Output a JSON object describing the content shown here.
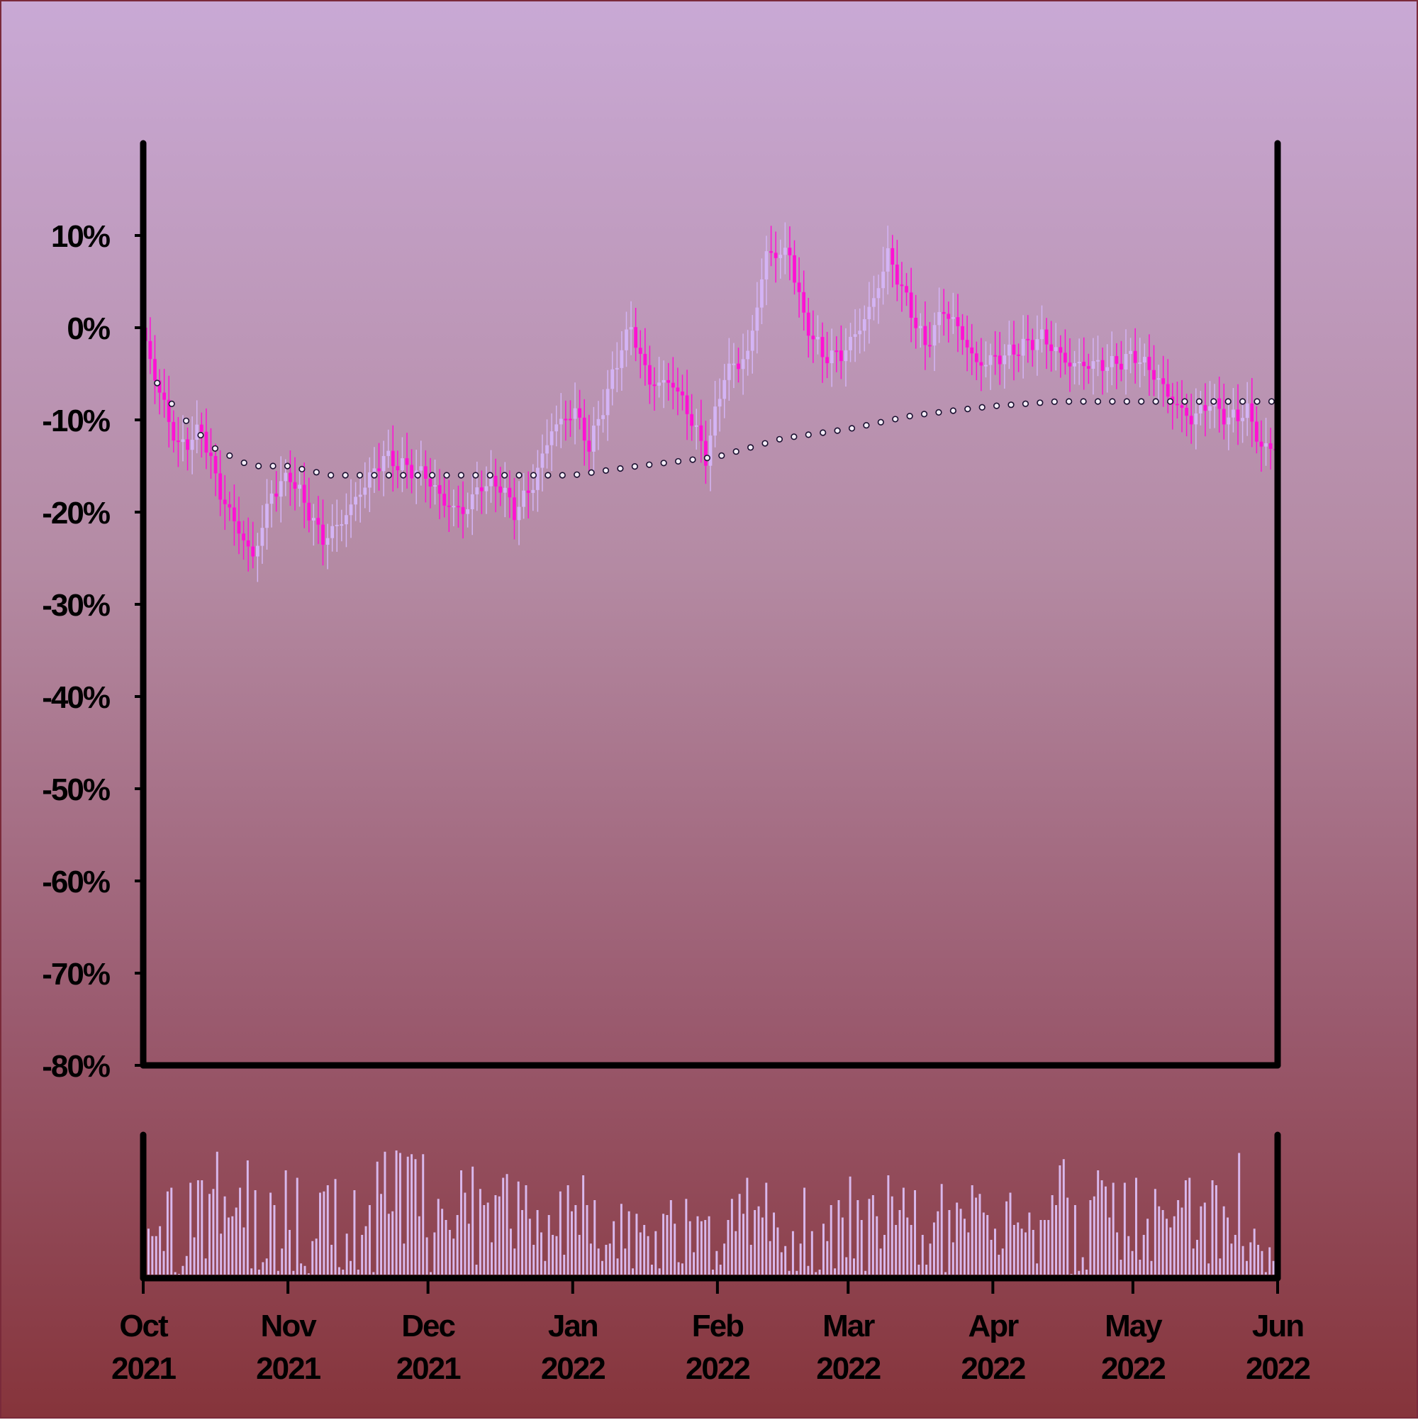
{
  "chart_data": {
    "type": "candlestick",
    "y_axis": {
      "ticks": [
        10,
        0,
        -10,
        -20,
        -30,
        -40,
        -50,
        -60,
        -70,
        -80
      ],
      "tick_labels": [
        "10%",
        "0%",
        "-10%",
        "-20%",
        "-30%",
        "-40%",
        "-50%",
        "-60%",
        "-70%",
        "-80%"
      ],
      "ylim": [
        -80,
        20
      ],
      "unit": "%"
    },
    "x_axis": {
      "range": [
        "2021-10-01",
        "2022-06-01"
      ],
      "ticks": [
        {
          "month": "Oct",
          "year": "2021",
          "date": "2021-10-01"
        },
        {
          "month": "Nov",
          "year": "2021",
          "date": "2021-11-01"
        },
        {
          "month": "Dec",
          "year": "2021",
          "date": "2021-12-01"
        },
        {
          "month": "Jan",
          "year": "2022",
          "date": "2022-01-01"
        },
        {
          "month": "Feb",
          "year": "2022",
          "date": "2022-02-01"
        },
        {
          "month": "Mar",
          "year": "2022",
          "date": "2022-03-01"
        },
        {
          "month": "Apr",
          "year": "2022",
          "date": "2022-04-01"
        },
        {
          "month": "May",
          "year": "2022",
          "date": "2022-05-01"
        },
        {
          "month": "Jun",
          "year": "2022",
          "date": "2022-06-01"
        }
      ]
    },
    "price_path": {
      "description": "cumulative return (%) at anchor dates; candles interpolate between",
      "points": [
        [
          "2021-10-01",
          0
        ],
        [
          "2021-10-05",
          -7
        ],
        [
          "2021-10-09",
          -13
        ],
        [
          "2021-10-12",
          -12
        ],
        [
          "2021-10-14",
          -11
        ],
        [
          "2021-10-18",
          -18
        ],
        [
          "2021-10-22",
          -22
        ],
        [
          "2021-10-25",
          -25
        ],
        [
          "2021-10-29",
          -18
        ],
        [
          "2021-11-02",
          -16
        ],
        [
          "2021-11-05",
          -19
        ],
        [
          "2021-11-09",
          -23
        ],
        [
          "2021-11-13",
          -21
        ],
        [
          "2021-11-18",
          -17
        ],
        [
          "2021-11-22",
          -14
        ],
        [
          "2021-11-26",
          -15
        ],
        [
          "2021-12-01",
          -16
        ],
        [
          "2021-12-05",
          -19
        ],
        [
          "2021-12-09",
          -20
        ],
        [
          "2021-12-13",
          -17
        ],
        [
          "2021-12-17",
          -17
        ],
        [
          "2021-12-20",
          -20
        ],
        [
          "2021-12-24",
          -17
        ],
        [
          "2021-12-28",
          -11
        ],
        [
          "2022-01-02",
          -9
        ],
        [
          "2022-01-05",
          -13
        ],
        [
          "2022-01-09",
          -7
        ],
        [
          "2022-01-12",
          -2
        ],
        [
          "2022-01-14",
          0
        ],
        [
          "2022-01-18",
          -6
        ],
        [
          "2022-01-23",
          -6
        ],
        [
          "2022-01-27",
          -10
        ],
        [
          "2022-01-30",
          -14
        ],
        [
          "2022-02-03",
          -5
        ],
        [
          "2022-02-08",
          -3
        ],
        [
          "2022-02-12",
          8
        ],
        [
          "2022-02-17",
          8
        ],
        [
          "2022-02-20",
          1
        ],
        [
          "2022-02-24",
          -3
        ],
        [
          "2022-02-28",
          -3
        ],
        [
          "2022-03-04",
          0
        ],
        [
          "2022-03-07",
          3
        ],
        [
          "2022-03-10",
          8
        ],
        [
          "2022-03-14",
          3
        ],
        [
          "2022-03-18",
          -2
        ],
        [
          "2022-03-22",
          2
        ],
        [
          "2022-03-25",
          0
        ],
        [
          "2022-03-29",
          -4
        ],
        [
          "2022-04-04",
          -3
        ],
        [
          "2022-04-08",
          -2
        ],
        [
          "2022-04-12",
          -1
        ],
        [
          "2022-04-18",
          -4
        ],
        [
          "2022-04-22",
          -4
        ],
        [
          "2022-04-27",
          -4
        ],
        [
          "2022-05-02",
          -3
        ],
        [
          "2022-05-06",
          -5
        ],
        [
          "2022-05-10",
          -8
        ],
        [
          "2022-05-14",
          -10
        ],
        [
          "2022-05-18",
          -8
        ],
        [
          "2022-05-22",
          -10
        ],
        [
          "2022-05-26",
          -9
        ],
        [
          "2022-05-29",
          -13
        ],
        [
          "2022-06-01",
          -13
        ]
      ]
    },
    "moving_average": {
      "style": "open circle markers",
      "points": [
        [
          "2021-10-01",
          -3
        ],
        [
          "2021-10-05",
          -7
        ],
        [
          "2021-10-10",
          -10
        ],
        [
          "2021-10-16",
          -13
        ],
        [
          "2021-10-24",
          -15
        ],
        [
          "2021-11-01",
          -15
        ],
        [
          "2021-11-10",
          -16
        ],
        [
          "2021-12-01",
          -16
        ],
        [
          "2021-12-15",
          -16
        ],
        [
          "2022-01-01",
          -16
        ],
        [
          "2022-01-15",
          -15
        ],
        [
          "2022-02-01",
          -14
        ],
        [
          "2022-02-15",
          -12
        ],
        [
          "2022-03-01",
          -11
        ],
        [
          "2022-03-15",
          -9.5
        ],
        [
          "2022-04-01",
          -8.5
        ],
        [
          "2022-04-15",
          -8
        ],
        [
          "2022-05-01",
          -8
        ],
        [
          "2022-06-01",
          -8
        ]
      ]
    },
    "volume": {
      "unit": "relative (0-1 of panel max)",
      "values": [
        0.37,
        0.31,
        0.31,
        0.39,
        0.19,
        0.67,
        0.7,
        0.02,
        0.0,
        0.07,
        0.15,
        0.74,
        0.3,
        0.76,
        0.76,
        0.13,
        0.65,
        0.69,
        0.99,
        0.33,
        0.63,
        0.46,
        0.47,
        0.54,
        0.7,
        0.38,
        0.92,
        0.05,
        0.68,
        0.04,
        0.1,
        0.13,
        0.66,
        0.56,
        0.03,
        0.21,
        0.84,
        0.36,
        0.03,
        0.78,
        0.09,
        0.07,
        0.01,
        0.27,
        0.29,
        0.66,
        0.67,
        0.72,
        0.24,
        0.77,
        0.06,
        0.04,
        0.33,
        0.11,
        0.68,
        0.04,
        0.32,
        0.39,
        0.56,
        0.02,
        0.91,
        0.65,
        0.99,
        0.49,
        0.51,
        1.0,
        0.98,
        0.25,
        0.95,
        0.97,
        0.93,
        0.47,
        0.97,
        0.3,
        0.02,
        0.34,
        0.61,
        0.53,
        0.44,
        0.36,
        0.29,
        0.48,
        0.84,
        0.66,
        0.41,
        0.87,
        0.08,
        0.69,
        0.56,
        0.58,
        0.26,
        0.64,
        0.63,
        0.78,
        0.81,
        0.37,
        0.21,
        0.75,
        0.52,
        0.72,
        0.45,
        0.24,
        0.52,
        0.34,
        0.11,
        0.48,
        0.32,
        0.31,
        0.67,
        0.16,
        0.72,
        0.51,
        0.56,
        0.32,
        0.8,
        0.56,
        0.25,
        0.6,
        0.21,
        0.11,
        0.24,
        0.25,
        0.43,
        0.13,
        0.57,
        0.21,
        0.51,
        0.05,
        0.49,
        0.34,
        0.4,
        0.31,
        0.08,
        0.35,
        0.05,
        0.49,
        0.48,
        0.6,
        0.41,
        0.1,
        0.09,
        0.61,
        0.43,
        0.18,
        0.47,
        0.43,
        0.44,
        0.47,
        0.04,
        0.19,
        0.08,
        0.25,
        0.44,
        0.61,
        0.35,
        0.65,
        0.49,
        0.78,
        0.24,
        0.52,
        0.55,
        0.46,
        0.74,
        0.27,
        0.5,
        0.38,
        0.18,
        0.23,
        0.03,
        0.35,
        0.03,
        0.25,
        0.7,
        0.07,
        0.35,
        0.02,
        0.04,
        0.41,
        0.27,
        0.56,
        0.05,
        0.6,
        0.46,
        0.14,
        0.79,
        0.13,
        0.6,
        0.44,
        0.03,
        0.61,
        0.64,
        0.47,
        0.21,
        0.32,
        0.8,
        0.63,
        0.4,
        0.52,
        0.7,
        0.46,
        0.4,
        0.68,
        0.08,
        0.32,
        0.08,
        0.25,
        0.42,
        0.51,
        0.73,
        0.02,
        0.52,
        0.26,
        0.58,
        0.53,
        0.45,
        0.34,
        0.72,
        0.62,
        0.65,
        0.5,
        0.48,
        0.28,
        0.37,
        0.16,
        0.21,
        0.59,
        0.66,
        0.4,
        0.42,
        0.37,
        0.34,
        0.5,
        0.36,
        0.09,
        0.44,
        0.44,
        0.44,
        0.64,
        0.56,
        0.88,
        0.93,
        0.62,
        0.0,
        0.56,
        0.03,
        0.14,
        0.04,
        0.6,
        0.63,
        0.84,
        0.76,
        0.71,
        0.46,
        0.74,
        0.34,
        0.12,
        0.74,
        0.31,
        0.19,
        0.78,
        0.12,
        0.32,
        0.45,
        0.11,
        0.69,
        0.55,
        0.52,
        0.45,
        0.38,
        0.47,
        0.6,
        0.54,
        0.76,
        0.78,
        0.21,
        0.28,
        0.55,
        0.58,
        0.09,
        0.76,
        0.72,
        0.13,
        0.55,
        0.46,
        0.25,
        0.32,
        0.98,
        0.23,
        0.11,
        0.26,
        0.37,
        0.24,
        0.19,
        0.02,
        0.22,
        0.11
      ]
    },
    "colors": {
      "up_candle": "#d4b4f5",
      "down_candle": "#ff10d4",
      "volume_bar": "#d9b8ec",
      "ma_marker_fill": "#f4eef8",
      "ma_marker_stroke": "#1a1030",
      "axis": "#000000",
      "background_top": "#c9a9d5",
      "background_bottom": "#86343b"
    }
  }
}
